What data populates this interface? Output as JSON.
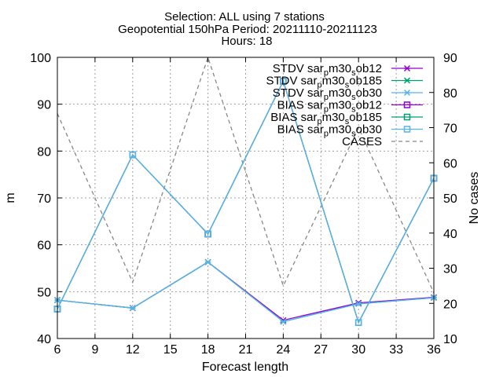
{
  "chart_data": {
    "type": "line",
    "title_lines": [
      "Selection: ALL using     7 stations",
      "Geopotential 150hPa   Period: 20211110-20211123",
      "Hours: 18"
    ],
    "xlabel": "Forecast length",
    "ylabel": "m",
    "y2label": "No cases",
    "xlim": [
      6,
      36
    ],
    "ylim": [
      40,
      100
    ],
    "y2lim": [
      10,
      90
    ],
    "xticks": [
      6,
      9,
      12,
      15,
      18,
      21,
      24,
      27,
      30,
      33,
      36
    ],
    "yticks": [
      40,
      50,
      60,
      70,
      80,
      90,
      100
    ],
    "y2ticks": [
      10,
      20,
      30,
      40,
      50,
      60,
      70,
      80,
      90
    ],
    "grid": true,
    "legend_position": "top-right",
    "x": [
      6,
      12,
      18,
      24,
      30,
      36
    ],
    "series": [
      {
        "name": "STDV sar_pm30_sob12",
        "base": "STDV sar",
        "sub1": "p",
        "mid": "m30",
        "sub2": "s",
        "tail": "ob12",
        "color": "#9400d3",
        "marker": "x-star",
        "axis": "y",
        "values": [
          48.2,
          46.5,
          56.3,
          43.9,
          47.6,
          48.8
        ]
      },
      {
        "name": "STDV sar_pm30_sob185",
        "base": "STDV sar",
        "sub1": "p",
        "mid": "m30",
        "sub2": "s",
        "tail": "ob185",
        "color": "#009e73",
        "marker": "x-star",
        "axis": "y",
        "values": [
          48.2,
          46.5,
          56.3,
          43.6,
          47.4,
          48.7
        ]
      },
      {
        "name": "STDV sar_pm30_sob30",
        "base": "STDV sar",
        "sub1": "p",
        "mid": "m30",
        "sub2": "s",
        "tail": "ob30",
        "color": "#56b4e9",
        "marker": "x-star",
        "axis": "y",
        "values": [
          48.2,
          46.5,
          56.3,
          43.6,
          47.4,
          48.7
        ]
      },
      {
        "name": "BIAS sar_pm30_sob12",
        "base": "BIAS sar",
        "sub1": "p",
        "mid": "m30",
        "sub2": "s",
        "tail": "ob12",
        "color": "#9400d3",
        "marker": "square",
        "axis": "y",
        "values": [
          46.3,
          79.2,
          62.3,
          94.9,
          43.4,
          74.2
        ]
      },
      {
        "name": "BIAS sar_pm30_sob185",
        "base": "BIAS sar",
        "sub1": "p",
        "mid": "m30",
        "sub2": "s",
        "tail": "ob185",
        "color": "#009e73",
        "marker": "square",
        "axis": "y",
        "values": [
          46.3,
          79.2,
          62.3,
          94.9,
          43.4,
          74.2
        ]
      },
      {
        "name": "BIAS sar_pm30_sob30",
        "base": "BIAS sar",
        "sub1": "p",
        "mid": "m30",
        "sub2": "s",
        "tail": "ob30",
        "color": "#56b4e9",
        "marker": "square",
        "axis": "y",
        "values": [
          46.3,
          79.2,
          62.3,
          94.9,
          43.4,
          74.2
        ]
      },
      {
        "name": "CASES",
        "color": "#888888",
        "marker": "none",
        "dashed": true,
        "axis": "y2",
        "values": [
          74,
          26,
          90,
          25,
          70,
          23
        ]
      }
    ]
  }
}
